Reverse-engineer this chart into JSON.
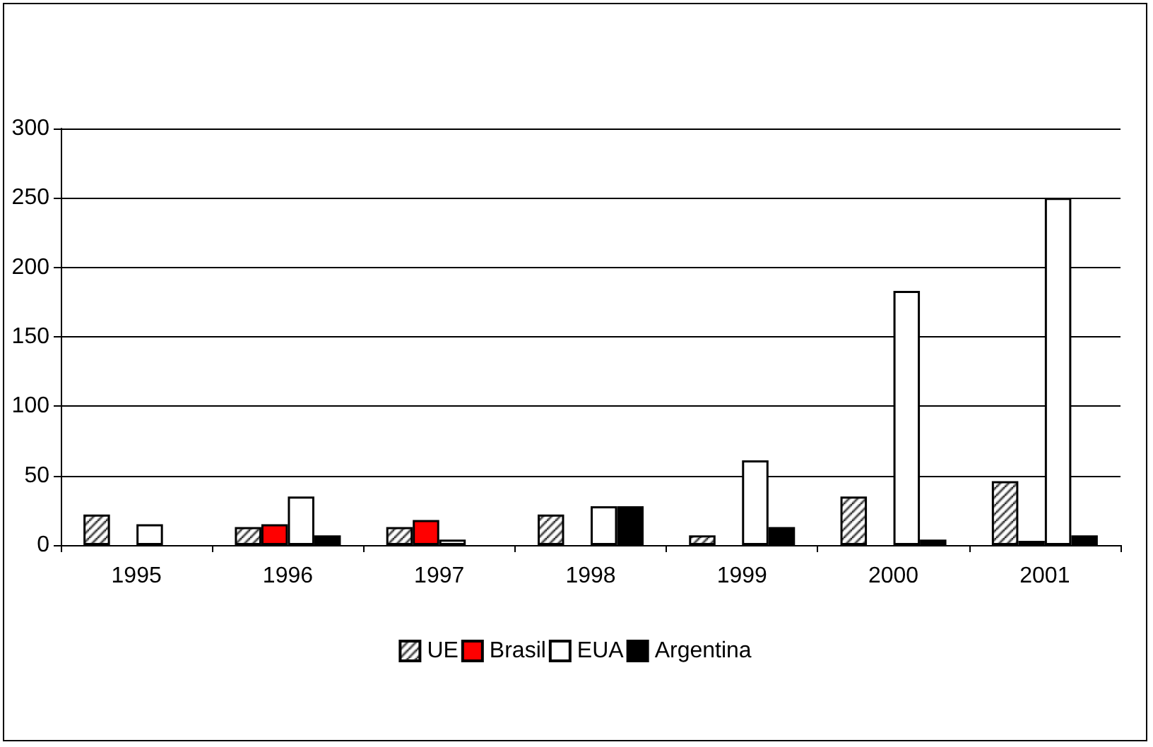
{
  "chart_data": {
    "type": "bar",
    "categories": [
      "1995",
      "1996",
      "1997",
      "1998",
      "1999",
      "2000",
      "2001"
    ],
    "series": [
      {
        "name": "UE",
        "color": "#000000",
        "values": [
          22,
          13,
          13,
          22,
          7,
          35,
          46
        ]
      },
      {
        "name": "Brasil",
        "color": "#ff0000",
        "values": [
          0,
          15,
          18,
          0,
          0,
          0,
          3
        ]
      },
      {
        "name": "EUA",
        "color": "#ffffff",
        "values": [
          15,
          35,
          4,
          28,
          61,
          183,
          250
        ]
      },
      {
        "name": "Argentina",
        "color": "#000000",
        "values": [
          0,
          7,
          0,
          28,
          13,
          4,
          7
        ]
      }
    ],
    "ylim": [
      0,
      300
    ],
    "yticks": [
      0,
      50,
      100,
      150,
      200,
      250,
      300
    ],
    "grid": "y",
    "legend": "bottom"
  }
}
